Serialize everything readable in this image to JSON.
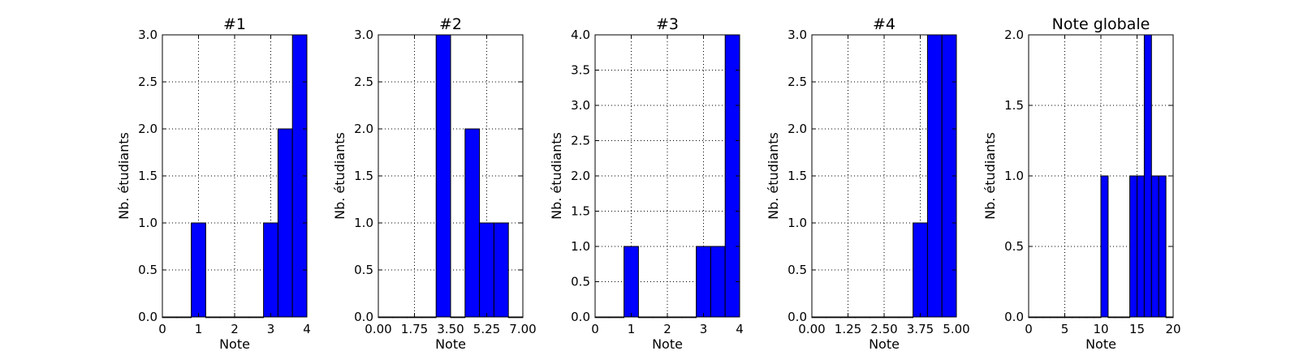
{
  "chart_data": [
    {
      "type": "bar",
      "title": "#1",
      "xlabel": "Note",
      "ylabel": "Nb. étudiants",
      "xlim": [
        0,
        4
      ],
      "ylim": [
        0,
        3.0
      ],
      "xticks": [
        "0",
        "1",
        "2",
        "3",
        "4"
      ],
      "yticks": [
        "0.0",
        "0.5",
        "1.0",
        "1.5",
        "2.0",
        "2.5",
        "3.0"
      ],
      "bin_edges": [
        0,
        0.4,
        0.8,
        1.2,
        1.6,
        2.0,
        2.4,
        2.8,
        3.2,
        3.6,
        4.0
      ],
      "values": [
        0,
        0,
        1,
        0,
        0,
        0,
        0,
        1,
        2,
        3
      ],
      "grid": true,
      "color": "#0000ff"
    },
    {
      "type": "bar",
      "title": "#2",
      "xlabel": "Note",
      "ylabel": "Nb. étudiants",
      "xlim": [
        0,
        8
      ],
      "ylim": [
        0,
        3.0
      ],
      "xticks": [
        "0.00",
        "1.75",
        "3.50",
        "5.25",
        "7.00"
      ],
      "yticks": [
        "0.0",
        "0.5",
        "1.0",
        "1.5",
        "2.0",
        "2.5",
        "3.0"
      ],
      "bin_edges": [
        0,
        0.8,
        1.6,
        2.4,
        3.2,
        4.0,
        4.8,
        5.6,
        6.4,
        7.2,
        8.0
      ],
      "values": [
        0,
        0,
        0,
        0,
        3,
        0,
        2,
        1,
        1,
        0
      ],
      "grid": true,
      "color": "#0000ff"
    },
    {
      "type": "bar",
      "title": "#3",
      "xlabel": "Note",
      "ylabel": "Nb. étudiants",
      "xlim": [
        0,
        4
      ],
      "ylim": [
        0,
        4.0
      ],
      "xticks": [
        "0",
        "1",
        "2",
        "3",
        "4"
      ],
      "yticks": [
        "0.0",
        "0.5",
        "1.0",
        "1.5",
        "2.0",
        "2.5",
        "3.0",
        "3.5",
        "4.0"
      ],
      "bin_edges": [
        0,
        0.4,
        0.8,
        1.2,
        1.6,
        2.0,
        2.4,
        2.8,
        3.2,
        3.6,
        4.0
      ],
      "values": [
        0,
        0,
        1,
        0,
        0,
        0,
        0,
        1,
        1,
        4
      ],
      "grid": true,
      "color": "#0000ff"
    },
    {
      "type": "bar",
      "title": "#4",
      "xlabel": "Note",
      "ylabel": "Nb. étudiants",
      "xlim": [
        0,
        5
      ],
      "ylim": [
        0,
        3.0
      ],
      "xticks": [
        "0.00",
        "1.25",
        "2.50",
        "3.75",
        "5.00"
      ],
      "yticks": [
        "0.0",
        "0.5",
        "1.0",
        "1.5",
        "2.0",
        "2.5",
        "3.0"
      ],
      "bin_edges": [
        0,
        0.5,
        1.0,
        1.5,
        2.0,
        2.5,
        3.0,
        3.5,
        4.0,
        4.5,
        5.0
      ],
      "values": [
        0,
        0,
        0,
        0,
        0,
        0,
        0,
        1,
        3,
        3
      ],
      "grid": true,
      "color": "#0000ff"
    },
    {
      "type": "bar",
      "title": "Note globale",
      "xlabel": "Note",
      "ylabel": "Nb. étudiants",
      "xlim": [
        0,
        20
      ],
      "ylim": [
        0,
        2.0
      ],
      "xticks": [
        "0",
        "5",
        "10",
        "15",
        "20"
      ],
      "yticks": [
        "0.0",
        "0.5",
        "1.0",
        "1.5",
        "2.0"
      ],
      "bin_edges": [
        0,
        1,
        2,
        3,
        4,
        5,
        6,
        7,
        8,
        9,
        10,
        11,
        12,
        13,
        14,
        15,
        16,
        17,
        18,
        19,
        20
      ],
      "values": [
        0,
        0,
        0,
        0,
        0,
        0,
        0,
        0,
        0,
        0,
        1,
        0,
        0,
        0,
        1,
        1,
        2,
        1,
        1,
        0
      ],
      "grid": true,
      "color": "#0000ff"
    }
  ]
}
